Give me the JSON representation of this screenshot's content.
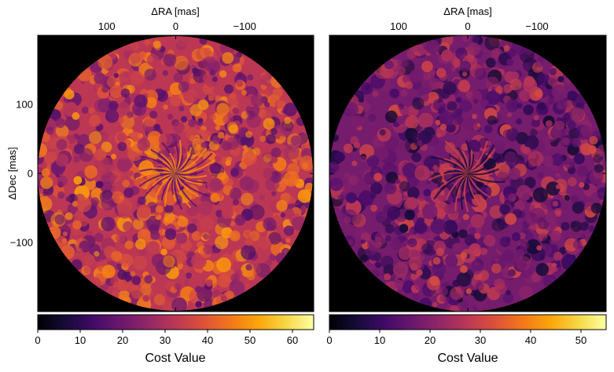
{
  "chart_data": [
    {
      "type": "heatmap",
      "panel": "left",
      "colormap": "inferno",
      "xlabel": "ΔRA [mas]",
      "ylabel": "ΔDec [mas]",
      "x_ticks": [
        "100",
        "0",
        "−100"
      ],
      "x_tick_values": [
        100,
        0,
        -100
      ],
      "y_ticks": [
        "100",
        "0",
        "−100"
      ],
      "y_tick_values": [
        100,
        0,
        -100
      ],
      "xlim": [
        200,
        -200
      ],
      "ylim": [
        -200,
        200
      ],
      "field_shape": "circle",
      "field_radius_mas": 200,
      "colorbar": {
        "label": "Cost Value",
        "range": [
          0,
          65
        ],
        "ticks": [
          "0",
          "10",
          "20",
          "30",
          "40",
          "50",
          "60"
        ],
        "tick_values": [
          0,
          10,
          20,
          30,
          40,
          50,
          60
        ]
      }
    },
    {
      "type": "heatmap",
      "panel": "right",
      "colormap": "inferno",
      "xlabel": "ΔRA [mas]",
      "ylabel": "",
      "x_ticks": [
        "100",
        "0",
        "−100"
      ],
      "x_tick_values": [
        100,
        0,
        -100
      ],
      "xlim": [
        200,
        -200
      ],
      "ylim": [
        -200,
        200
      ],
      "field_shape": "circle",
      "field_radius_mas": 200,
      "colorbar": {
        "label": "Cost Value",
        "range": [
          0,
          55
        ],
        "ticks": [
          "0",
          "10",
          "20",
          "30",
          "40",
          "50"
        ],
        "tick_values": [
          0,
          10,
          20,
          30,
          40,
          50
        ]
      }
    }
  ]
}
